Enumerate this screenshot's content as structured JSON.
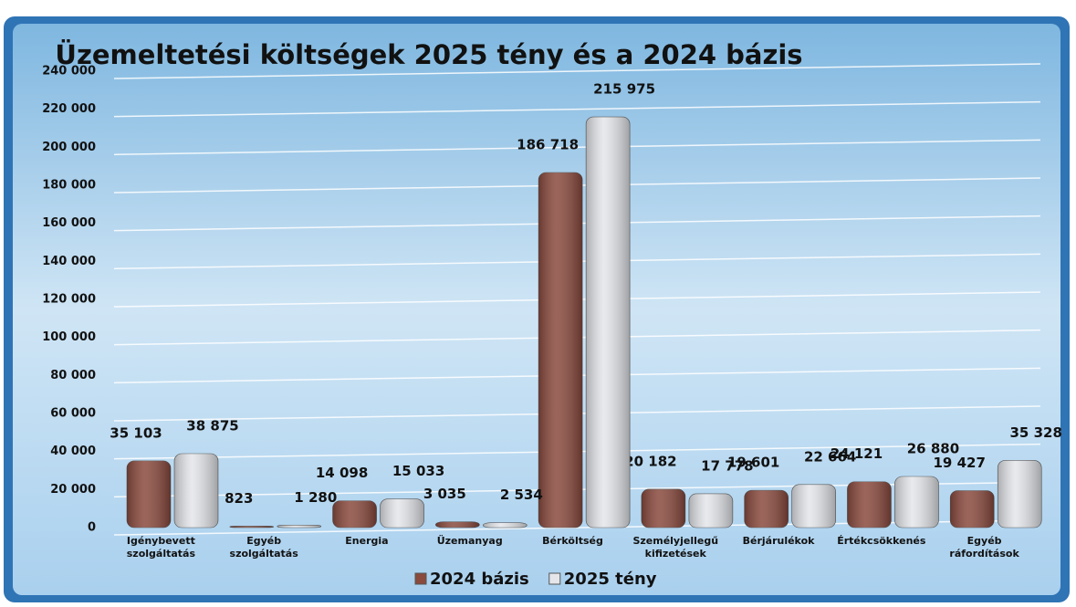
{
  "chart_data": {
    "type": "bar",
    "title": "Üzemeltetési költségek 2025 tény és a 2024 bázis",
    "categories": [
      "Igénybevett szolgáltatás",
      "Egyéb szolgáltatás",
      "Energia",
      "Üzemanyag",
      "Bérköltség",
      "Személyjellegű kifizetések",
      "Bérjárulékok",
      "Értékcsökkenés",
      "Egyéb ráfordítások"
    ],
    "series": [
      {
        "name": "2024 bázis",
        "color": "#8a4a3e",
        "values": [
          35103,
          823,
          14098,
          3035,
          186718,
          20182,
          19601,
          24121,
          19427
        ],
        "value_labels": [
          "35 103",
          "823",
          "14 098",
          "3 035",
          "186 718",
          "20 182",
          "19 601",
          "24 121",
          "19 427"
        ]
      },
      {
        "name": "2025 tény",
        "color": "#e4e6ea",
        "values": [
          38875,
          1280,
          15033,
          2534,
          215975,
          17778,
          22664,
          26880,
          35328
        ],
        "value_labels": [
          "38 875",
          "1 280",
          "15 033",
          "2 534",
          "215 975",
          "17 778",
          "22 664",
          "26 880",
          "35 328"
        ]
      }
    ],
    "ylim": [
      0,
      240000
    ],
    "yticks": [
      0,
      {
        "value": 20000,
        "label": "20 000"
      },
      {
        "value": 40000,
        "label": "40 000"
      },
      {
        "value": 60000,
        "label": "60 000"
      },
      {
        "value": 80000,
        "label": "80 000"
      },
      {
        "value": 100000,
        "label": "100 000"
      },
      {
        "value": 120000,
        "label": "120 000"
      },
      {
        "value": 140000,
        "label": "140 000"
      },
      {
        "value": 160000,
        "label": "160 000"
      },
      {
        "value": 180000,
        "label": "180 000"
      },
      {
        "value": 200000,
        "label": "200 000"
      },
      {
        "value": 220000,
        "label": "220 000"
      },
      {
        "value": 240000,
        "label": "240 000"
      }
    ],
    "grid": true,
    "legend": "bottom"
  }
}
